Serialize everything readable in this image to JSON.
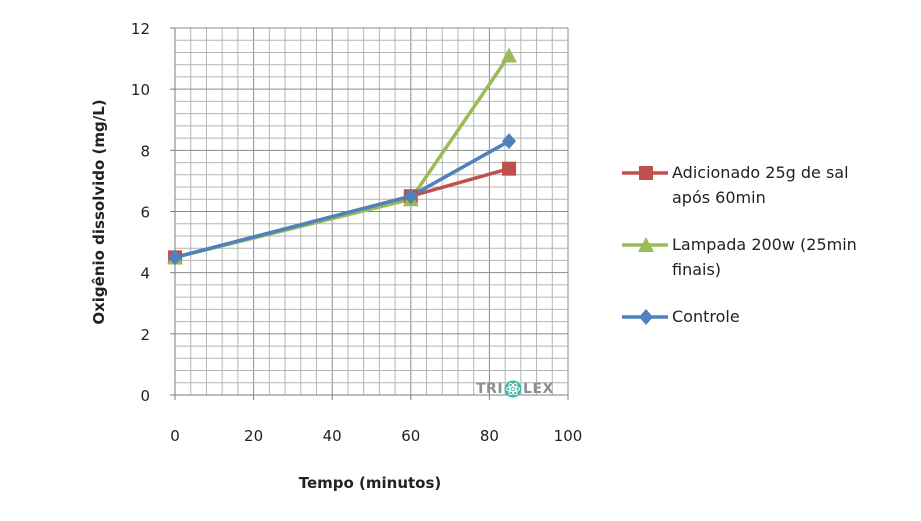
{
  "chart_data": {
    "type": "line",
    "xlabel": "Tempo (minutos)",
    "ylabel": "Oxigênio dissolvido  (mg/L)",
    "xlim": [
      0,
      100
    ],
    "ylim": [
      0,
      12
    ],
    "xticks": [
      0,
      20,
      40,
      60,
      80,
      100
    ],
    "yticks": [
      0,
      2,
      4,
      6,
      8,
      10,
      12
    ],
    "grid": true,
    "legend_position": "right",
    "series": [
      {
        "name": "Adicionado 25g de sal após 60min",
        "name_lines": [
          "Adicionado 25g de sal",
          "após 60min"
        ],
        "marker": "square",
        "color": "#c0504d",
        "x": [
          0,
          60,
          85
        ],
        "y": [
          4.5,
          6.5,
          7.4
        ]
      },
      {
        "name": "Lampada 200w (25min finais)",
        "name_lines": [
          "Lampada 200w (25min",
          "finais)"
        ],
        "marker": "triangle",
        "color": "#9bbb59",
        "x": [
          0,
          60,
          85
        ],
        "y": [
          4.5,
          6.4,
          11.1
        ]
      },
      {
        "name": "Controle",
        "name_lines": [
          "Controle"
        ],
        "marker": "diamond",
        "color": "#4f81bd",
        "x": [
          0,
          60,
          85
        ],
        "y": [
          4.5,
          6.5,
          8.3
        ]
      }
    ]
  },
  "watermark": {
    "text_left": "TRI",
    "text_right": "LEX",
    "icon": "atom-icon",
    "color": "#3cb8a8"
  }
}
